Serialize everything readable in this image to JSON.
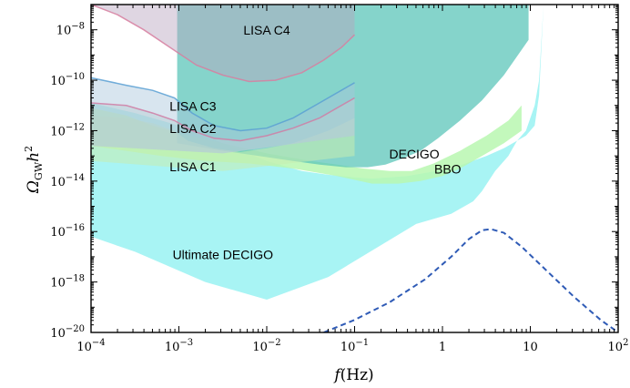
{
  "chart_data": {
    "type": "area",
    "xscale": "log",
    "yscale": "log",
    "xlim": [
      0.0001,
      100
    ],
    "ylim": [
      1e-20,
      1e-07
    ],
    "xlabel_main": "f",
    "xlabel_unit": "(Hz)",
    "ylabel_main": "Ω",
    "ylabel_sub": "GW",
    "ylabel_tail": "h",
    "ylabel_sup": "2",
    "x_ticks": [
      {
        "exp": -4,
        "base": "10",
        "sup": "−4",
        "plain": ""
      },
      {
        "exp": -3,
        "base": "10",
        "sup": "−3",
        "plain": ""
      },
      {
        "exp": -2,
        "base": "10",
        "sup": "−2",
        "plain": ""
      },
      {
        "exp": -1,
        "base": "10",
        "sup": "−1",
        "plain": ""
      },
      {
        "exp": 0,
        "base": "",
        "sup": "",
        "plain": "1"
      },
      {
        "exp": 1,
        "base": "",
        "sup": "",
        "plain": "10"
      },
      {
        "exp": 2,
        "base": "10",
        "sup": "2",
        "plain": ""
      }
    ],
    "y_ticks": [
      {
        "exp": -20,
        "base": "10",
        "sup": "−20"
      },
      {
        "exp": -18,
        "base": "10",
        "sup": "−18"
      },
      {
        "exp": -16,
        "base": "10",
        "sup": "−16"
      },
      {
        "exp": -14,
        "base": "10",
        "sup": "−14"
      },
      {
        "exp": -12,
        "base": "10",
        "sup": "−12"
      },
      {
        "exp": -10,
        "base": "10",
        "sup": "−10"
      },
      {
        "exp": -8,
        "base": "10",
        "sup": "−8"
      }
    ],
    "series": [
      {
        "name": "Ultimate DECIGO",
        "kind": "region",
        "color": "#a8f4f4",
        "opacity": 1,
        "label_at": [
          -2.5,
          -17.1
        ],
        "log_points": [
          [
            -4,
            -10.9
          ],
          [
            -3.5,
            -11.3
          ],
          [
            -3,
            -11.8
          ],
          [
            -2.5,
            -12.5
          ],
          [
            -2,
            -13.2
          ],
          [
            -1.6,
            -13.6
          ],
          [
            -1.3,
            -13.75
          ],
          [
            -1,
            -13.85
          ],
          [
            -0.8,
            -13.9
          ],
          [
            -0.4,
            -13.8
          ],
          [
            0.1,
            -13.5
          ],
          [
            0.5,
            -13.0
          ],
          [
            0.7,
            -12.7
          ],
          [
            0.85,
            -12.4
          ],
          [
            0.95,
            -12.0
          ],
          [
            1.0,
            -11.5
          ],
          [
            1.05,
            -11.0
          ],
          [
            1.1,
            -10.0
          ],
          [
            1.15,
            -7.0
          ],
          [
            1.15,
            -7.0
          ],
          [
            1.1,
            -10.6
          ],
          [
            1.05,
            -11.8
          ],
          [
            0.95,
            -12.2
          ],
          [
            0.85,
            -12.4
          ],
          [
            0.8,
            -12.7
          ],
          [
            0.75,
            -13.0
          ],
          [
            0.6,
            -13.6
          ],
          [
            0.45,
            -14.4
          ],
          [
            0.35,
            -14.8
          ],
          [
            0.1,
            -15.3
          ],
          [
            -0.3,
            -15.7
          ],
          [
            -1.3,
            -17.8
          ],
          [
            -2.0,
            -18.7
          ],
          [
            -2.7,
            -18.0
          ],
          [
            -3.5,
            -16.8
          ],
          [
            -4,
            -16.2
          ]
        ]
      },
      {
        "name": "BBO",
        "kind": "region",
        "color": "#b8f7b0",
        "opacity": 0.85,
        "label_at": [
          0.06,
          -13.7
        ],
        "log_points": [
          [
            -4,
            -11.1
          ],
          [
            -3.6,
            -11.4
          ],
          [
            -3.3,
            -11.8
          ],
          [
            -3,
            -12.1
          ],
          [
            -2.5,
            -12.5
          ],
          [
            -2,
            -12.9
          ],
          [
            -1.5,
            -13.2
          ],
          [
            -1.2,
            -13.35
          ],
          [
            -0.9,
            -13.5
          ],
          [
            -0.6,
            -13.6
          ],
          [
            -0.35,
            -13.6
          ],
          [
            -0.1,
            -13.3
          ],
          [
            0.2,
            -12.8
          ],
          [
            0.5,
            -12.2
          ],
          [
            0.75,
            -11.6
          ],
          [
            0.9,
            -11.0
          ],
          [
            0.9,
            -12.0
          ],
          [
            0.7,
            -12.5
          ],
          [
            0.45,
            -13.0
          ],
          [
            0.2,
            -13.5
          ],
          [
            0.0,
            -13.8
          ],
          [
            -0.25,
            -14.0
          ],
          [
            -0.5,
            -14.1
          ],
          [
            -0.8,
            -14.1
          ],
          [
            -1.2,
            -13.8
          ],
          [
            -1.7,
            -13.5
          ],
          [
            -2.2,
            -13.3
          ],
          [
            -2.7,
            -13.2
          ],
          [
            -3.2,
            -13.0
          ],
          [
            -3.6,
            -12.8
          ],
          [
            -4,
            -12.6
          ]
        ]
      },
      {
        "name": "DECIGO",
        "kind": "region",
        "color": "#5cc6ba",
        "opacity": 0.75,
        "label_at": [
          -0.32,
          -13.1
        ],
        "log_points": [
          [
            -3.02,
            -7
          ],
          [
            0.98,
            -7
          ],
          [
            0.98,
            -8.4
          ],
          [
            0.7,
            -9.8
          ],
          [
            0.45,
            -10.8
          ],
          [
            0.2,
            -11.6
          ],
          [
            -0.05,
            -12.3
          ],
          [
            -0.25,
            -12.8
          ],
          [
            -0.45,
            -13.1
          ],
          [
            -0.65,
            -13.35
          ],
          [
            -0.85,
            -13.45
          ],
          [
            -1.1,
            -13.45
          ],
          [
            -1.4,
            -13.35
          ],
          [
            -1.7,
            -13.2
          ],
          [
            -2.0,
            -13.05
          ],
          [
            -2.5,
            -12.8
          ],
          [
            -3.02,
            -12.5
          ]
        ]
      },
      {
        "name": "LISA C1",
        "kind": "region",
        "color": "#c6ecb0",
        "opacity": 0.55,
        "label_at": [
          -2.84,
          -13.6
        ],
        "log_points": [
          [
            -4,
            -11.4
          ],
          [
            -3.6,
            -11.5
          ],
          [
            -3.3,
            -11.7
          ],
          [
            -3.05,
            -12.0
          ],
          [
            -2.9,
            -12.4
          ],
          [
            -2.6,
            -12.7
          ],
          [
            -2.3,
            -12.85
          ],
          [
            -2.0,
            -12.7
          ],
          [
            -1.7,
            -12.5
          ],
          [
            -1.3,
            -12.0
          ],
          [
            -1.0,
            -11.5
          ],
          [
            -1.0,
            -13.0
          ],
          [
            -2.5,
            -13.6
          ],
          [
            -4,
            -13.2
          ]
        ]
      },
      {
        "name": "LISA C2",
        "kind": "region",
        "color": "#c9d8d0",
        "opacity": 0.5,
        "label_at": [
          -2.84,
          -12.1
        ],
        "log_points": [
          [
            -4,
            -10.9
          ],
          [
            -3.6,
            -11.0
          ],
          [
            -3.3,
            -11.3
          ],
          [
            -3.05,
            -11.6
          ],
          [
            -2.85,
            -12.0
          ],
          [
            -2.6,
            -12.3
          ],
          [
            -2.3,
            -12.4
          ],
          [
            -2.0,
            -12.2
          ],
          [
            -1.7,
            -11.9
          ],
          [
            -1.4,
            -11.5
          ],
          [
            -1.0,
            -10.7
          ],
          [
            -1.0,
            -12.2
          ],
          [
            -2.5,
            -12.9
          ],
          [
            -4,
            -12.6
          ]
        ]
      },
      {
        "name": "LISA C3",
        "kind": "region",
        "color": "#a9c6dc",
        "opacity": 0.45,
        "label_at": [
          -2.84,
          -11.2
        ],
        "log_points": [
          [
            -4,
            -9.9
          ],
          [
            -3.6,
            -10.2
          ],
          [
            -3.3,
            -10.4
          ],
          [
            -3.05,
            -10.7
          ],
          [
            -2.85,
            -11.3
          ],
          [
            -2.6,
            -11.8
          ],
          [
            -2.3,
            -12.0
          ],
          [
            -2.0,
            -11.9
          ],
          [
            -1.7,
            -11.5
          ],
          [
            -1.4,
            -10.9
          ],
          [
            -1.0,
            -10.1
          ],
          [
            -1.0,
            -12.2
          ],
          [
            -2.5,
            -12.9
          ],
          [
            -4,
            -12.6
          ]
        ]
      },
      {
        "name": "LISA C4",
        "kind": "region",
        "color": "#b7a3bf",
        "opacity": 0.45,
        "label_at": [
          -2.0,
          -8.2
        ],
        "log_points": [
          [
            -4,
            -7
          ],
          [
            -1.0,
            -7
          ],
          [
            -1.0,
            -8.2
          ],
          [
            -1.15,
            -8.7
          ],
          [
            -1.35,
            -9.2
          ],
          [
            -1.6,
            -9.7
          ],
          [
            -1.9,
            -10.0
          ],
          [
            -2.2,
            -10.05
          ],
          [
            -2.5,
            -9.8
          ],
          [
            -2.8,
            -9.4
          ],
          [
            -3.1,
            -8.7
          ],
          [
            -3.4,
            -8.0
          ],
          [
            -3.7,
            -7.4
          ],
          [
            -4,
            -7.0
          ]
        ]
      },
      {
        "name": "",
        "kind": "line",
        "color": "#2f5bb6",
        "dashed": true,
        "log_points": [
          [
            -1.35,
            -20.0
          ],
          [
            -1.0,
            -19.5
          ],
          [
            -0.6,
            -18.8
          ],
          [
            -0.2,
            -17.9
          ],
          [
            0.1,
            -17.0
          ],
          [
            0.3,
            -16.3
          ],
          [
            0.45,
            -15.95
          ],
          [
            0.55,
            -15.9
          ],
          [
            0.7,
            -16.05
          ],
          [
            0.9,
            -16.6
          ],
          [
            1.2,
            -17.6
          ],
          [
            1.5,
            -18.6
          ],
          [
            1.8,
            -19.5
          ],
          [
            2.0,
            -20.0
          ]
        ]
      }
    ],
    "boundaries": [
      {
        "color": "#d77fa0",
        "log_points": [
          [
            -4,
            -7.0
          ],
          [
            -3.7,
            -7.4
          ],
          [
            -3.4,
            -8.0
          ],
          [
            -3.1,
            -8.7
          ],
          [
            -2.8,
            -9.4
          ],
          [
            -2.5,
            -9.8
          ],
          [
            -2.2,
            -10.05
          ],
          [
            -1.9,
            -10.0
          ],
          [
            -1.6,
            -9.7
          ],
          [
            -1.35,
            -9.2
          ],
          [
            -1.15,
            -8.7
          ],
          [
            -1.0,
            -8.2
          ]
        ]
      },
      {
        "color": "#5aa0d4",
        "log_points": [
          [
            -4,
            -9.9
          ],
          [
            -3.6,
            -10.2
          ],
          [
            -3.3,
            -10.4
          ],
          [
            -3.05,
            -10.7
          ],
          [
            -2.85,
            -11.3
          ],
          [
            -2.6,
            -11.8
          ],
          [
            -2.3,
            -12.0
          ],
          [
            -2.0,
            -11.9
          ],
          [
            -1.7,
            -11.5
          ],
          [
            -1.4,
            -10.9
          ],
          [
            -1.0,
            -10.1
          ]
        ]
      },
      {
        "color": "#d07ca4",
        "log_points": [
          [
            -4,
            -10.9
          ],
          [
            -3.6,
            -11.0
          ],
          [
            -3.3,
            -11.3
          ],
          [
            -3.05,
            -11.6
          ],
          [
            -2.85,
            -12.0
          ],
          [
            -2.6,
            -12.3
          ],
          [
            -2.3,
            -12.4
          ],
          [
            -2.0,
            -12.2
          ],
          [
            -1.7,
            -11.9
          ],
          [
            -1.4,
            -11.5
          ],
          [
            -1.0,
            -10.7
          ]
        ]
      }
    ]
  }
}
